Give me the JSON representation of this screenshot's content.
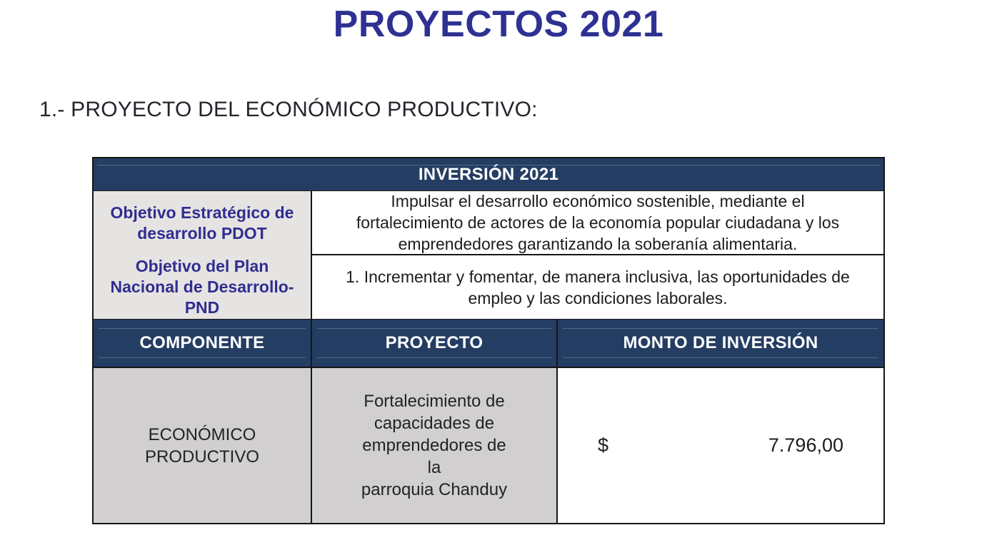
{
  "page": {
    "title": "PROYECTOS 2021",
    "section_heading": "1.- PROYECTO DEL ECONÓMICO PRODUCTIVO:"
  },
  "table": {
    "header": "INVERSIÓN 2021",
    "objectives": [
      {
        "label": "Objetivo Estratégico de\ndesarrollo PDOT",
        "text": "Impulsar el desarrollo económico sostenible, mediante el\nfortalecimiento de actores de la economía popular ciudadana y los\nemprendedores garantizando la soberanía alimentaria."
      },
      {
        "label": "Objetivo del Plan\nNacional de Desarrollo-\nPND",
        "text": "1. Incrementar y fomentar, de manera inclusiva, las oportunidades de\nempleo y las condiciones laborales."
      }
    ],
    "columns": [
      "COMPONENTE",
      "PROYECTO",
      "MONTO DE INVERSIÓN"
    ],
    "rows": [
      {
        "componente": "ECONÓMICO\nPRODUCTIVO",
        "proyecto": "Fortalecimiento de\ncapacidades de\nemprendedores de la\nparroquia Chanduy",
        "currency_symbol": "$",
        "monto": "7.796,00"
      }
    ]
  },
  "colors": {
    "title_text": "#2E3192",
    "band_navy": "#243D63",
    "label_indigo": "#312D90",
    "label_cell_gray": "#E6E4E3",
    "data_cell_gray": "#D1CFCF",
    "border_black": "#161616"
  }
}
